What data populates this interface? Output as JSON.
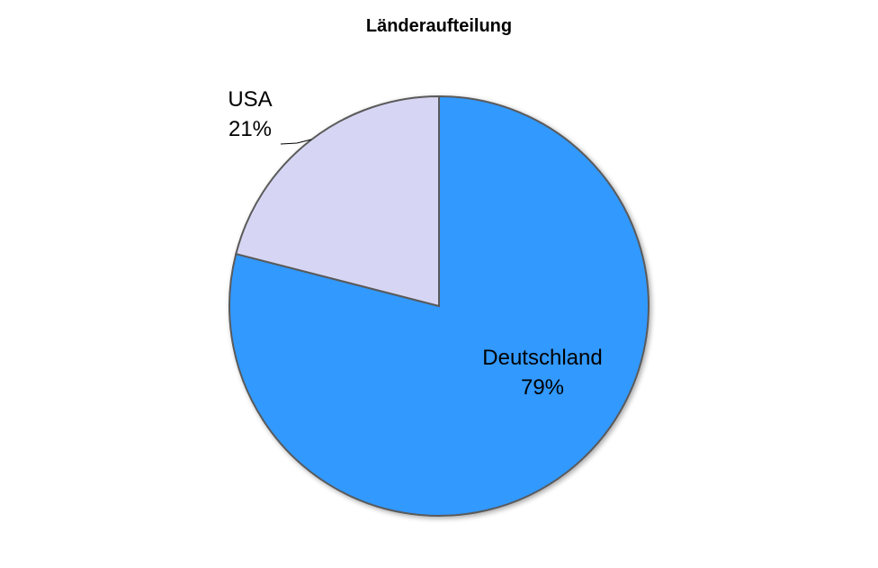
{
  "chart_data": {
    "type": "pie",
    "title": "Länderaufteilung",
    "start": "top, clockwise",
    "slices": [
      {
        "label": "Deutschland",
        "value": 79,
        "pct_label": "79%",
        "color": "#3399FF"
      },
      {
        "label": "USA",
        "value": 21,
        "pct_label": "21%",
        "color": "#D6D6F4"
      }
    ],
    "edge_color": "#5A5A5A"
  }
}
